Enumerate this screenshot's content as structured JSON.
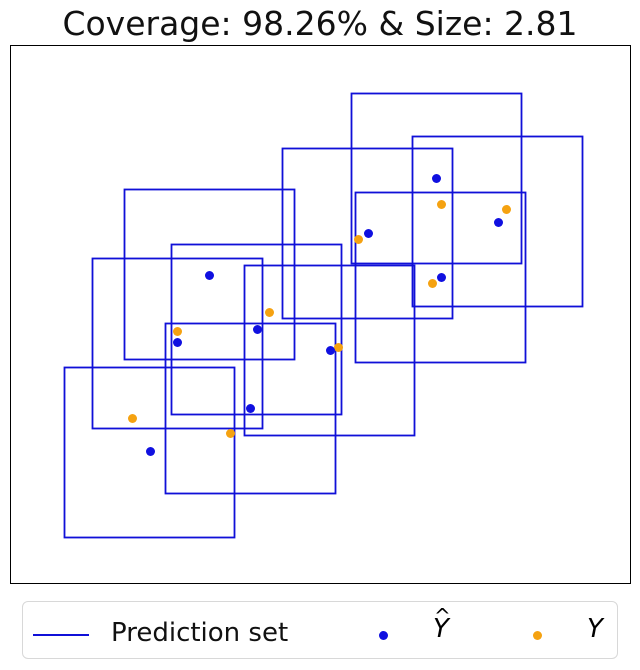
{
  "title": "Coverage: 98.26% & Size: 2.81",
  "legend": {
    "line_label": "Prediction set",
    "yhat_label": "Y",
    "yhat_accent": "^",
    "y_label": "Y"
  },
  "colors": {
    "box": "#1010d8",
    "yhat": "#1010e0",
    "y": "#f5a211",
    "frame": "#000000"
  },
  "chart_data": {
    "type": "scatter",
    "title": "Coverage: 98.26% & Size: 2.81",
    "xlabel": "",
    "ylabel": "",
    "xlim": [
      0,
      620
    ],
    "ylim": [
      0,
      538
    ],
    "grid": false,
    "axis_ticks": false,
    "legend_position": "bottom",
    "series": [
      {
        "name": "Prediction set",
        "kind": "box",
        "boxes": [
          {
            "x0": 341,
            "x1": 511,
            "y0": 320,
            "y1": 490
          },
          {
            "x0": 402,
            "x1": 572,
            "y0": 277,
            "y1": 447
          },
          {
            "x0": 272,
            "x1": 442,
            "y0": 265,
            "y1": 435
          },
          {
            "x0": 345,
            "x1": 515,
            "y0": 221,
            "y1": 391
          },
          {
            "x0": 114,
            "x1": 284,
            "y0": 224,
            "y1": 394
          },
          {
            "x0": 161,
            "x1": 331,
            "y0": 169,
            "y1": 339
          },
          {
            "x0": 82,
            "x1": 252,
            "y0": 155,
            "y1": 325
          },
          {
            "x0": 234,
            "x1": 404,
            "y0": 148,
            "y1": 318
          },
          {
            "x0": 155,
            "x1": 325,
            "y0": 90,
            "y1": 260
          },
          {
            "x0": 54,
            "x1": 224,
            "y0": 46,
            "y1": 216
          }
        ]
      },
      {
        "name": "Ŷ",
        "kind": "point",
        "points": [
          {
            "x": 426,
            "y": 405
          },
          {
            "x": 488,
            "y": 361
          },
          {
            "x": 358,
            "y": 350
          },
          {
            "x": 431,
            "y": 306
          },
          {
            "x": 199,
            "y": 308
          },
          {
            "x": 247,
            "y": 254
          },
          {
            "x": 167,
            "y": 241
          },
          {
            "x": 320,
            "y": 233
          },
          {
            "x": 240,
            "y": 175
          },
          {
            "x": 140,
            "y": 132
          }
        ]
      },
      {
        "name": "Y",
        "kind": "point",
        "points": [
          {
            "x": 431,
            "y": 379
          },
          {
            "x": 496,
            "y": 374
          },
          {
            "x": 348,
            "y": 344
          },
          {
            "x": 422,
            "y": 300
          },
          {
            "x": 259,
            "y": 271
          },
          {
            "x": 167,
            "y": 252
          },
          {
            "x": 328,
            "y": 236
          },
          {
            "x": 122,
            "y": 165
          },
          {
            "x": 220,
            "y": 150
          }
        ]
      }
    ]
  }
}
